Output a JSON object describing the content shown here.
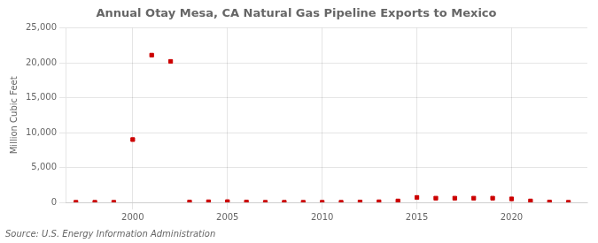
{
  "chart_data": {
    "type": "scatter",
    "title": "Annual Otay Mesa, CA Natural Gas Pipeline Exports to Mexico",
    "ylabel": "Million Cubic Feet",
    "source": "Source: U.S. Energy Information Administration",
    "x": [
      1997,
      1998,
      1999,
      2000,
      2001,
      2002,
      2003,
      2004,
      2005,
      2006,
      2007,
      2008,
      2009,
      2010,
      2011,
      2012,
      2013,
      2014,
      2015,
      2016,
      2017,
      2018,
      2019,
      2020,
      2021,
      2022,
      2023
    ],
    "values": [
      5,
      5,
      5,
      9000,
      21100,
      20200,
      50,
      80,
      100,
      50,
      5,
      5,
      5,
      5,
      5,
      50,
      80,
      200,
      700,
      600,
      600,
      600,
      600,
      500,
      200,
      50,
      5
    ],
    "color": "#cc0000",
    "marker": "square",
    "xlim": [
      1996.5,
      2024
    ],
    "xticks": [
      2000,
      2005,
      2010,
      2015,
      2020
    ],
    "ylim": [
      0,
      25000
    ],
    "yticks": [
      0,
      {
        "value": 5000,
        "label": "5,000"
      },
      {
        "value": 10000,
        "label": "10,000"
      },
      {
        "value": 15000,
        "label": "15,000"
      },
      {
        "value": 20000,
        "label": "20,000"
      },
      {
        "value": 25000,
        "label": "25,000"
      }
    ],
    "grid": true
  }
}
